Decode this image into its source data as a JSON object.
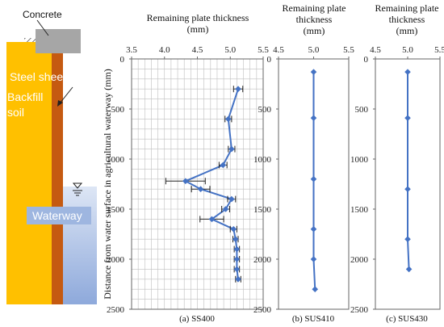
{
  "schematic": {
    "concrete_label": "Concrete",
    "pile_label": "Steel sheet pile",
    "backfill_label_line1": "Backfill",
    "backfill_label_line2": "soil",
    "waterway_label": "Waterway",
    "colors": {
      "concrete": "#a6a6a6",
      "soil": "#ffc000",
      "pile": "#c55a11",
      "water_top": "#dde6f5",
      "water_bottom": "#8ea9db",
      "waterway_box": "#9eb6e0"
    }
  },
  "chart_data": [
    {
      "type": "line",
      "title_line1": "Remaining plate thickness",
      "title_line2": "(mm)",
      "ylabel": "Distance from water surface in agricultural waterway (mm)",
      "xlim": [
        3.5,
        5.5
      ],
      "xticks": [
        "3.5",
        "4.0",
        "4.5",
        "5.0",
        "5.5"
      ],
      "ylim": [
        0,
        2500
      ],
      "yticks": [
        "0",
        "500",
        "1000",
        "1500",
        "2000",
        "2500"
      ],
      "caption": "(a)  SS400",
      "grid": true,
      "series": [
        {
          "color": "#4472c4",
          "x": [
            5.12,
            4.97,
            5.02,
            4.89,
            4.32,
            4.55,
            5.02,
            4.93,
            4.72,
            5.05,
            5.08,
            5.1,
            5.1,
            5.1,
            5.12
          ],
          "y": [
            300,
            600,
            900,
            1060,
            1220,
            1300,
            1400,
            1500,
            1600,
            1700,
            1800,
            1900,
            2000,
            2100,
            2200
          ],
          "err": [
            0.07,
            0.05,
            0.05,
            0.06,
            0.3,
            0.14,
            0.06,
            0.06,
            0.18,
            0.05,
            0.04,
            0.04,
            0.04,
            0.04,
            0.04
          ]
        }
      ]
    },
    {
      "type": "line",
      "title_line1": "Remaining plate",
      "title_line2": "thickness",
      "title_line3": "(mm)",
      "xlim": [
        4.5,
        5.5
      ],
      "xticks": [
        "4.5",
        "5.0",
        "5.5"
      ],
      "ylim": [
        0,
        2500
      ],
      "yticks": [
        "0",
        "500",
        "1000",
        "1500",
        "2000",
        "2500"
      ],
      "caption": "(b)  SUS410",
      "grid": false,
      "series": [
        {
          "color": "#4472c4",
          "x": [
            5.0,
            5.0,
            5.0,
            5.0,
            5.0,
            5.02
          ],
          "y": [
            130,
            590,
            1200,
            1700,
            2000,
            2300
          ]
        }
      ]
    },
    {
      "type": "line",
      "title_line1": "Remaining plate",
      "title_line2": "thickness",
      "title_line3": "(mm)",
      "xlim": [
        4.5,
        5.5
      ],
      "xticks": [
        "4.5",
        "5.0",
        "5.5"
      ],
      "ylim": [
        0,
        2500
      ],
      "yticks": [
        "0",
        "500",
        "1000",
        "1500",
        "2000",
        "2500"
      ],
      "caption": "(c)  SUS430",
      "grid": false,
      "series": [
        {
          "color": "#4472c4",
          "x": [
            5.0,
            5.0,
            5.0,
            5.0,
            5.02
          ],
          "y": [
            130,
            590,
            1300,
            1800,
            2100
          ]
        }
      ]
    }
  ]
}
